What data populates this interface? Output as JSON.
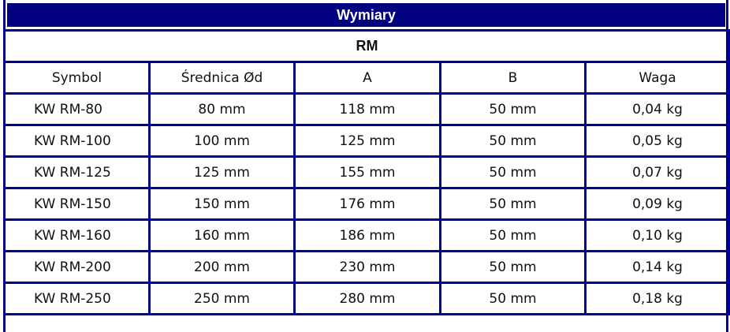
{
  "title": "Wymiary",
  "subtitle": "RM",
  "columns": [
    "Symbol",
    "Średnica Ød",
    "A",
    "B",
    "Waga"
  ],
  "rows": [
    [
      "KW RM-80",
      "80 mm",
      "118 mm",
      "50 mm",
      "0,04 kg"
    ],
    [
      "KW RM-100",
      "100 mm",
      "125 mm",
      "50 mm",
      "0,05 kg"
    ],
    [
      "KW RM-125",
      "125 mm",
      "155 mm",
      "50 mm",
      "0,07 kg"
    ],
    [
      "KW RM-150",
      "150 mm",
      "176 mm",
      "50 mm",
      "0,09 kg"
    ],
    [
      "KW RM-160",
      "160 mm",
      "186 mm",
      "50 mm",
      "0,10 kg"
    ],
    [
      "KW RM-200",
      "200 mm",
      "230 mm",
      "50 mm",
      "0,14 kg"
    ],
    [
      "KW RM-250",
      "250 mm",
      "280 mm",
      "50 mm",
      "0,18 kg"
    ]
  ],
  "colors": {
    "border": "#00008b",
    "title_bg": "#000080"
  }
}
